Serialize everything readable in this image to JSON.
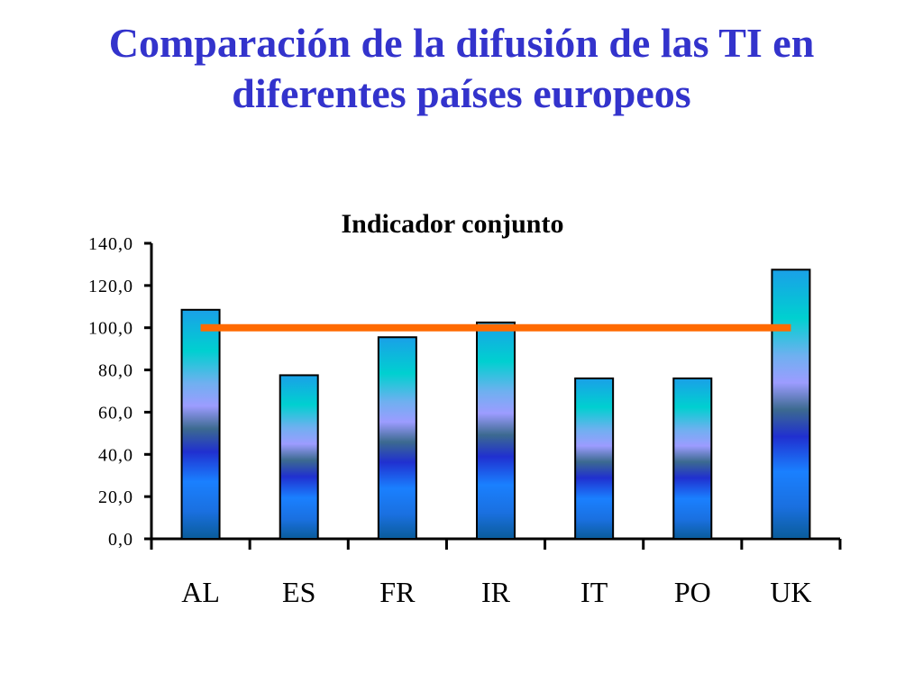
{
  "slide": {
    "title_line1": "Comparación de la difusión de las TI en",
    "title_line2": "diferentes países europeos"
  },
  "chart_data": {
    "type": "bar",
    "title": "Indicador conjunto",
    "xlabel": "",
    "ylabel": "",
    "categories": [
      "AL",
      "ES",
      "FR",
      "IR",
      "IT",
      "PO",
      "UK"
    ],
    "values": [
      108.5,
      77.5,
      95.5,
      102.5,
      76.0,
      76.0,
      127.5
    ],
    "reference_line": {
      "value": 100.0,
      "color": "#ff6a00"
    },
    "ylim": [
      0,
      140
    ],
    "yticks": [
      "0,0",
      "20,0",
      "40,0",
      "60,0",
      "80,0",
      "100,0",
      "120,0",
      "140,0"
    ],
    "grid": false,
    "legend": "none"
  }
}
